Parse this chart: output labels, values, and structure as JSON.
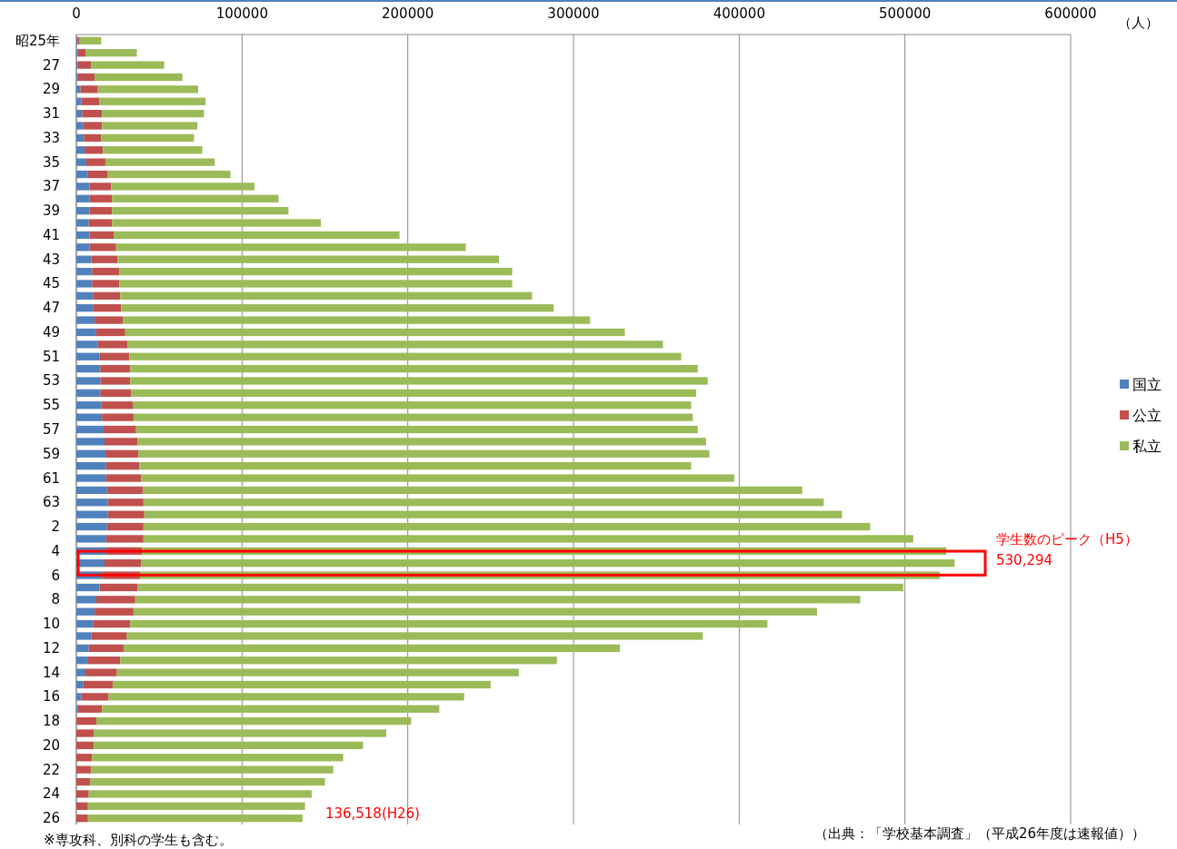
{
  "chart_data": {
    "type": "bar",
    "orientation": "horizontal",
    "stacked": true,
    "xlabel": "（人）",
    "categories": [
      "昭25年",
      null,
      "27",
      null,
      "29",
      null,
      "31",
      null,
      "33",
      null,
      "35",
      null,
      "37",
      null,
      "39",
      null,
      "41",
      null,
      "43",
      null,
      "45",
      null,
      "47",
      null,
      "49",
      null,
      "51",
      null,
      "53",
      null,
      "55",
      null,
      "57",
      null,
      "59",
      null,
      "61",
      null,
      "63",
      null,
      "2",
      null,
      "4",
      null,
      "6",
      null,
      "8",
      null,
      "10",
      null,
      "12",
      null,
      "14",
      null,
      "16",
      null,
      "18",
      null,
      "20",
      null,
      "22",
      null,
      "24",
      null,
      "26"
    ],
    "series": [
      {
        "name": "国立",
        "color": "#4f81bd",
        "values": [
          1000,
          1000,
          1000,
          1000,
          2500,
          3000,
          3500,
          4000,
          4500,
          5000,
          6000,
          7000,
          8000,
          8000,
          8000,
          7500,
          8000,
          8000,
          9000,
          9500,
          9500,
          10000,
          10000,
          11000,
          12000,
          13000,
          14000,
          14500,
          14500,
          14500,
          15000,
          15500,
          16500,
          17000,
          17500,
          18000,
          18000,
          18500,
          19000,
          19000,
          18500,
          18000,
          18000,
          17000,
          15500,
          14000,
          12000,
          11000,
          10000,
          9000,
          7500,
          6500,
          5500,
          4000,
          3000,
          1000,
          100,
          0,
          0,
          0,
          0,
          0,
          0,
          0,
          0
        ]
      },
      {
        "name": "公立",
        "color": "#c0504d",
        "values": [
          1000,
          4500,
          8000,
          10000,
          10500,
          11000,
          12000,
          11500,
          10500,
          11000,
          11500,
          12000,
          13000,
          13500,
          13500,
          14000,
          14500,
          16000,
          16000,
          16500,
          16500,
          16500,
          17000,
          17000,
          17500,
          18000,
          18000,
          18000,
          18000,
          18500,
          19000,
          19000,
          19500,
          20000,
          20000,
          20000,
          21000,
          21500,
          21500,
          22000,
          22000,
          22500,
          21500,
          22000,
          23000,
          23000,
          23500,
          23500,
          22500,
          21500,
          21000,
          20000,
          19000,
          18000,
          16500,
          14500,
          12000,
          10500,
          10500,
          9500,
          9000,
          8500,
          7500,
          7000,
          7000
        ]
      },
      {
        "name": "私立",
        "color": "#9bbb59",
        "values": [
          13000,
          31000,
          44000,
          53000,
          60500,
          64000,
          61500,
          57500,
          56000,
          60000,
          66000,
          74000,
          86500,
          100500,
          106500,
          126000,
          172500,
          211000,
          230000,
          237000,
          237000,
          248500,
          261000,
          282000,
          301500,
          323000,
          333000,
          342500,
          348500,
          341000,
          337000,
          337500,
          339000,
          343000,
          344500,
          333000,
          358000,
          398000,
          410500,
          421000,
          438500,
          464500,
          485500,
          491000,
          482500,
          462000,
          437500,
          412500,
          384500,
          347500,
          299500,
          263500,
          242500,
          228000,
          214500,
          203500,
          189900,
          176500,
          162500,
          151500,
          146000,
          141500,
          134500,
          131000,
          129500
        ]
      }
    ],
    "xlim": [
      0,
      600000
    ],
    "xticks": [
      0,
      100000,
      200000,
      300000,
      400000,
      500000,
      600000
    ],
    "grid": "x",
    "legend": "right",
    "annotations": [
      "学生数のピーク（H5）",
      "530,294",
      "136,518(H26)",
      "※専攻科、別科の学生も含む。",
      "（出典：「学校基本調査」（平成26年度は速報値））"
    ]
  }
}
